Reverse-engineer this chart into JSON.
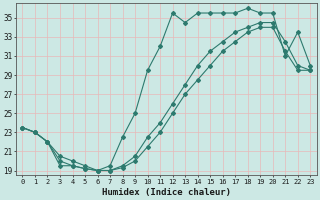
{
  "xlabel": "Humidex (Indice chaleur)",
  "bg_color": "#cce8e4",
  "grid_color": "#b8d8d4",
  "line_color": "#2d7a6e",
  "xlim": [
    -0.5,
    23.5
  ],
  "ylim": [
    18.5,
    36.5
  ],
  "xticks": [
    0,
    1,
    2,
    3,
    4,
    5,
    6,
    7,
    8,
    9,
    10,
    11,
    12,
    13,
    14,
    15,
    16,
    17,
    18,
    19,
    20,
    21,
    22,
    23
  ],
  "yticks": [
    19,
    21,
    23,
    25,
    27,
    29,
    31,
    33,
    35
  ],
  "line_top_x": [
    0,
    1,
    2,
    3,
    4,
    5,
    6,
    7,
    8,
    9,
    10,
    11,
    12,
    13,
    14,
    15,
    16,
    17,
    18,
    19,
    20,
    21,
    22,
    23
  ],
  "line_top_y": [
    23.5,
    23.0,
    22.0,
    20.5,
    20.0,
    19.5,
    19.0,
    19.5,
    22.5,
    25.0,
    29.5,
    32.0,
    35.5,
    34.5,
    35.5,
    35.5,
    35.5,
    35.5,
    36.0,
    35.5,
    35.5,
    31.0,
    33.5,
    30.0
  ],
  "line_mid_x": [
    0,
    1,
    2,
    3,
    4,
    5,
    6,
    7,
    8,
    9,
    10,
    11,
    12,
    13,
    14,
    15,
    16,
    17,
    18,
    19,
    20,
    21,
    22,
    23
  ],
  "line_mid_y": [
    23.5,
    23.0,
    22.0,
    20.0,
    19.5,
    19.2,
    19.0,
    19.0,
    19.5,
    20.5,
    22.5,
    24.0,
    26.0,
    28.0,
    30.0,
    31.5,
    32.5,
    33.5,
    34.0,
    34.5,
    34.5,
    32.5,
    30.0,
    29.5
  ],
  "line_bot_x": [
    0,
    1,
    2,
    3,
    4,
    5,
    6,
    7,
    8,
    9,
    10,
    11,
    12,
    13,
    14,
    15,
    16,
    17,
    18,
    19,
    20,
    21,
    22,
    23
  ],
  "line_bot_y": [
    23.5,
    23.0,
    22.0,
    19.5,
    19.5,
    19.2,
    19.0,
    19.0,
    19.3,
    20.0,
    21.5,
    23.0,
    25.0,
    27.0,
    28.5,
    30.0,
    31.5,
    32.5,
    33.5,
    34.0,
    34.0,
    31.5,
    29.5,
    29.5
  ]
}
